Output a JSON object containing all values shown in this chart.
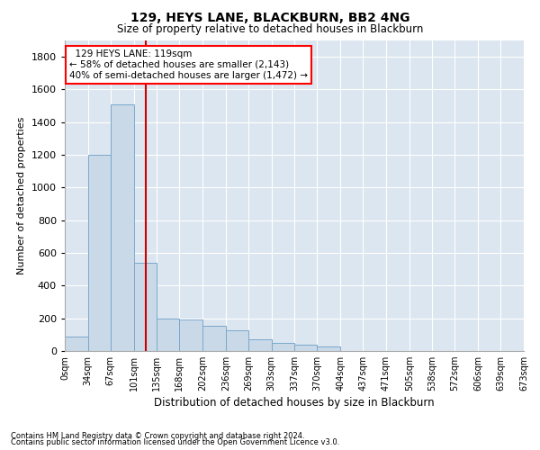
{
  "title": "129, HEYS LANE, BLACKBURN, BB2 4NG",
  "subtitle": "Size of property relative to detached houses in Blackburn",
  "xlabel": "Distribution of detached houses by size in Blackburn",
  "ylabel": "Number of detached properties",
  "footnote1": "Contains HM Land Registry data © Crown copyright and database right 2024.",
  "footnote2": "Contains public sector information licensed under the Open Government Licence v3.0.",
  "annotation_line1": "  129 HEYS LANE: 119sqm",
  "annotation_line2": "← 58% of detached houses are smaller (2,143)",
  "annotation_line3": "40% of semi-detached houses are larger (1,472) →",
  "bar_color": "#c9d9e8",
  "bar_edge_color": "#7aa8cc",
  "line_color": "#cc0000",
  "background_color": "#dce6f0",
  "bin_edges": [
    0,
    34,
    67,
    101,
    135,
    168,
    202,
    236,
    269,
    303,
    337,
    370,
    404,
    437,
    471,
    505,
    538,
    572,
    606,
    639,
    673
  ],
  "bin_labels": [
    "0sqm",
    "34sqm",
    "67sqm",
    "101sqm",
    "135sqm",
    "168sqm",
    "202sqm",
    "236sqm",
    "269sqm",
    "303sqm",
    "337sqm",
    "370sqm",
    "404sqm",
    "437sqm",
    "471sqm",
    "505sqm",
    "538sqm",
    "572sqm",
    "606sqm",
    "639sqm",
    "673sqm"
  ],
  "bar_heights": [
    90,
    1200,
    1510,
    540,
    200,
    195,
    155,
    125,
    70,
    50,
    40,
    30,
    0,
    0,
    0,
    0,
    0,
    0,
    0,
    0
  ],
  "property_size": 119,
  "ylim": [
    0,
    1900
  ],
  "yticks": [
    0,
    200,
    400,
    600,
    800,
    1000,
    1200,
    1400,
    1600,
    1800
  ]
}
